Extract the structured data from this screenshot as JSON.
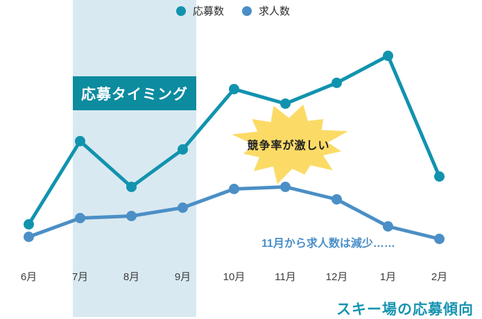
{
  "chart_data": {
    "type": "line",
    "categories": [
      "6月",
      "7月",
      "8月",
      "9月",
      "10月",
      "11月",
      "12月",
      "1月",
      "2月"
    ],
    "series": [
      {
        "name": "応募数",
        "color": "#1193ae",
        "values": [
          19,
          59,
          37,
          55,
          84,
          77,
          87,
          100,
          42
        ]
      },
      {
        "name": "求人数",
        "color": "#4b8fc6",
        "values": [
          13,
          22,
          23,
          27,
          36,
          37,
          31,
          18,
          12
        ]
      }
    ],
    "title": "スキー場の応募傾向",
    "xlabel": "",
    "ylabel": "",
    "ylim": [
      0,
      110
    ],
    "grid": false,
    "legend_position": "top-center",
    "highlight_band": {
      "categories": [
        "7月",
        "8月",
        "9月"
      ],
      "label": "応募タイミング",
      "color": "#d9e9f1"
    }
  },
  "annotations": {
    "band_label": "応募タイミング",
    "burst_label": "競争率が激しい",
    "note": "11月から求人数は減少……",
    "title": "スキー場の応募傾向"
  },
  "colors": {
    "band": "#d9e9f1",
    "band_label_bg": "#0d8b9f",
    "band_label_text": "#ffffff",
    "burst_fill": "#fbdb66",
    "burst_text": "#222222",
    "note_text": "#4a8fc8",
    "title_text": "#1794b0",
    "axis_text": "#3c3c3c"
  }
}
